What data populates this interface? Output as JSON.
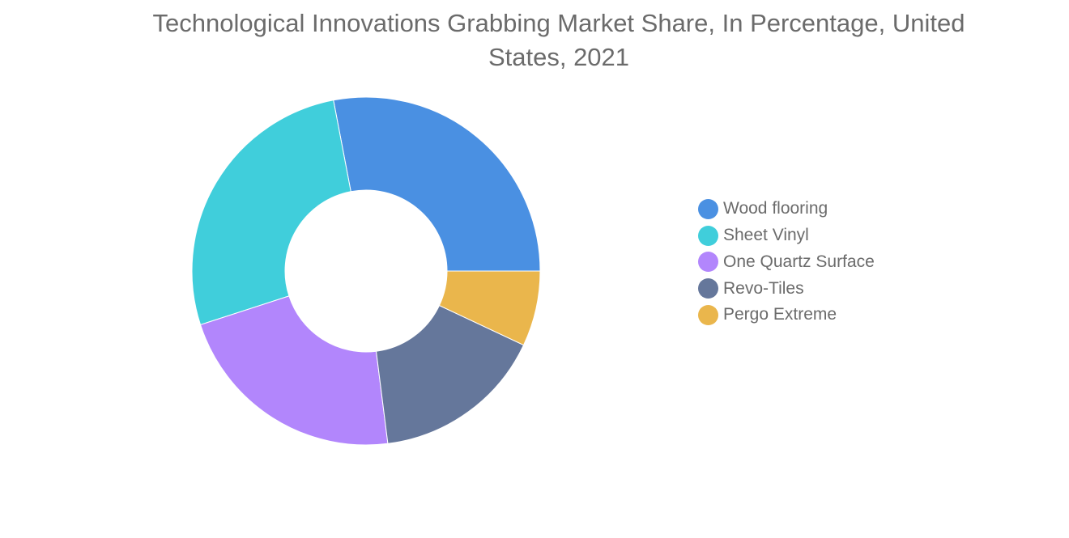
{
  "chart_data": {
    "type": "pie",
    "title": "Technological Innovations Grabbing Market Share, In Percentage, United States, 2021",
    "donut": true,
    "legend_position": "right",
    "series": [
      {
        "name": "Wood flooring",
        "value": 28,
        "color": "#4a90e2"
      },
      {
        "name": "Sheet Vinyl",
        "value": 27,
        "color": "#40cedb"
      },
      {
        "name": "One Quartz Surface",
        "value": 22,
        "color": "#b286fc"
      },
      {
        "name": "Revo-Tiles",
        "value": 16,
        "color": "#65779b"
      },
      {
        "name": "Pergo Extreme",
        "value": 7,
        "color": "#eab64c"
      }
    ]
  }
}
